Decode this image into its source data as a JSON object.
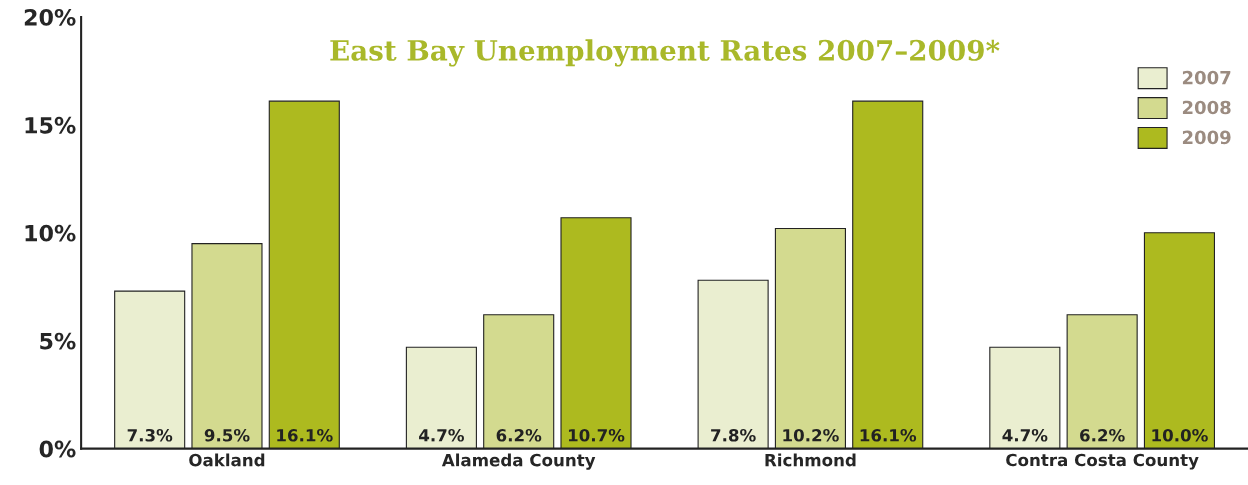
{
  "chart_data": {
    "type": "bar",
    "title": "East Bay Unemployment Rates 2007–2009*",
    "categories": [
      "Oakland",
      "Alameda County",
      "Richmond",
      "Contra Costa County"
    ],
    "series": [
      {
        "name": "2007",
        "color": "#eaeed0",
        "values": [
          7.3,
          4.7,
          7.8,
          4.7
        ],
        "value_labels": [
          "7.3%",
          "4.7%",
          "7.8%",
          "4.7%"
        ]
      },
      {
        "name": "2008",
        "color": "#d3da8f",
        "values": [
          9.5,
          6.2,
          10.2,
          6.2
        ],
        "value_labels": [
          "9.5%",
          "6.2%",
          "10.2%",
          "6.2%"
        ]
      },
      {
        "name": "2009",
        "color": "#adba1f",
        "values": [
          16.1,
          10.7,
          16.1,
          10.0
        ],
        "value_labels": [
          "16.1%",
          "10.7%",
          "16.1%",
          "10.0%"
        ]
      }
    ],
    "ylim": [
      0,
      20
    ],
    "yticks": [
      {
        "value": 0,
        "label": "0%"
      },
      {
        "value": 5,
        "label": "5%"
      },
      {
        "value": 10,
        "label": "10%"
      },
      {
        "value": 15,
        "label": "15%"
      },
      {
        "value": 20,
        "label": "20%"
      }
    ],
    "grid": false,
    "legend": "top right"
  }
}
